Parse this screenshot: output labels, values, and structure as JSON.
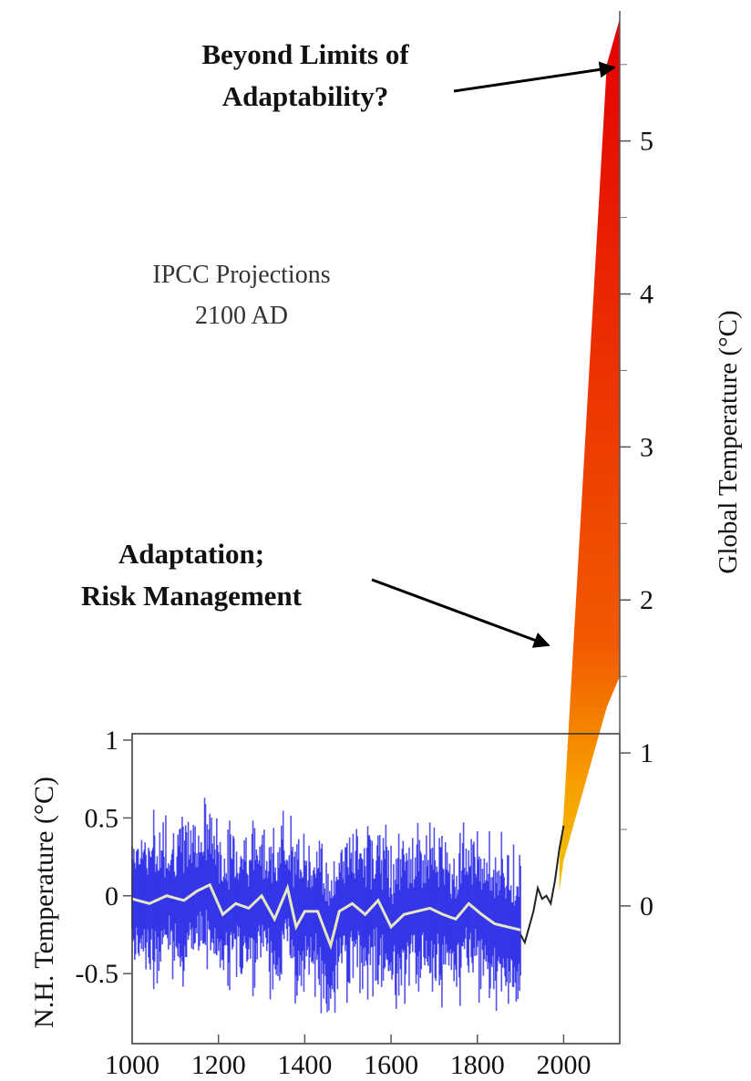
{
  "chart_data": {
    "type": "line",
    "annotations": {
      "beyond_line1": "Beyond Limits of",
      "beyond_line2": "Adaptability?",
      "ipcc_line1": "IPCC Projections",
      "ipcc_line2": "2100 AD",
      "adapt_line1": "Adaptation;",
      "adapt_line2": "Risk Management"
    },
    "left_axis": {
      "label": "N.H. Temperature (°C)",
      "ticks": [
        "1",
        "0.5",
        "0",
        "-0.5"
      ],
      "tick_values": [
        1,
        0.5,
        0,
        -0.5
      ],
      "range": [
        -0.95,
        1.0
      ]
    },
    "right_axis": {
      "label": "Global Temperature (°C)",
      "ticks": [
        "5",
        "4",
        "3",
        "2",
        "1",
        "0"
      ],
      "tick_values": [
        5,
        4,
        3,
        2,
        1,
        0
      ],
      "range": [
        -0.9,
        5.85
      ]
    },
    "x_axis": {
      "ticks": [
        "1000",
        "1200",
        "1400",
        "1600",
        "1800",
        "2000"
      ],
      "tick_values": [
        1000,
        1200,
        1400,
        1600,
        1800,
        2000
      ],
      "range": [
        1000,
        2130
      ]
    },
    "reconstruction_smoothed": {
      "x": [
        1000,
        1040,
        1080,
        1120,
        1150,
        1180,
        1210,
        1240,
        1270,
        1300,
        1330,
        1360,
        1380,
        1400,
        1430,
        1460,
        1480,
        1510,
        1540,
        1570,
        1600,
        1630,
        1660,
        1690,
        1720,
        1750,
        1780,
        1810,
        1840,
        1870,
        1900
      ],
      "y": [
        -0.02,
        -0.05,
        0.0,
        -0.03,
        0.03,
        0.07,
        -0.12,
        -0.05,
        -0.08,
        0.0,
        -0.15,
        0.05,
        -0.2,
        -0.1,
        -0.1,
        -0.32,
        -0.1,
        -0.05,
        -0.12,
        -0.03,
        -0.2,
        -0.12,
        -0.1,
        -0.08,
        -0.12,
        -0.15,
        -0.05,
        -0.12,
        -0.18,
        -0.2,
        -0.22
      ]
    },
    "instrumental": {
      "x": [
        1900,
        1910,
        1920,
        1930,
        1940,
        1950,
        1960,
        1970,
        1980,
        1990,
        2000
      ],
      "y": [
        -0.25,
        -0.3,
        -0.2,
        -0.1,
        0.05,
        -0.02,
        0.0,
        -0.05,
        0.1,
        0.3,
        0.45
      ]
    },
    "projection_envelope": {
      "x": [
        1990,
        2000,
        2100,
        2130
      ],
      "upper": [
        0.3,
        0.6,
        5.5,
        5.8
      ],
      "lower": [
        0.1,
        0.3,
        1.3,
        1.5
      ]
    },
    "colors": {
      "reconstruction": "#1a1ae6",
      "smoothed": "#e6e6c0",
      "projection_low": "#f0c000",
      "projection_high": "#e60000"
    }
  }
}
